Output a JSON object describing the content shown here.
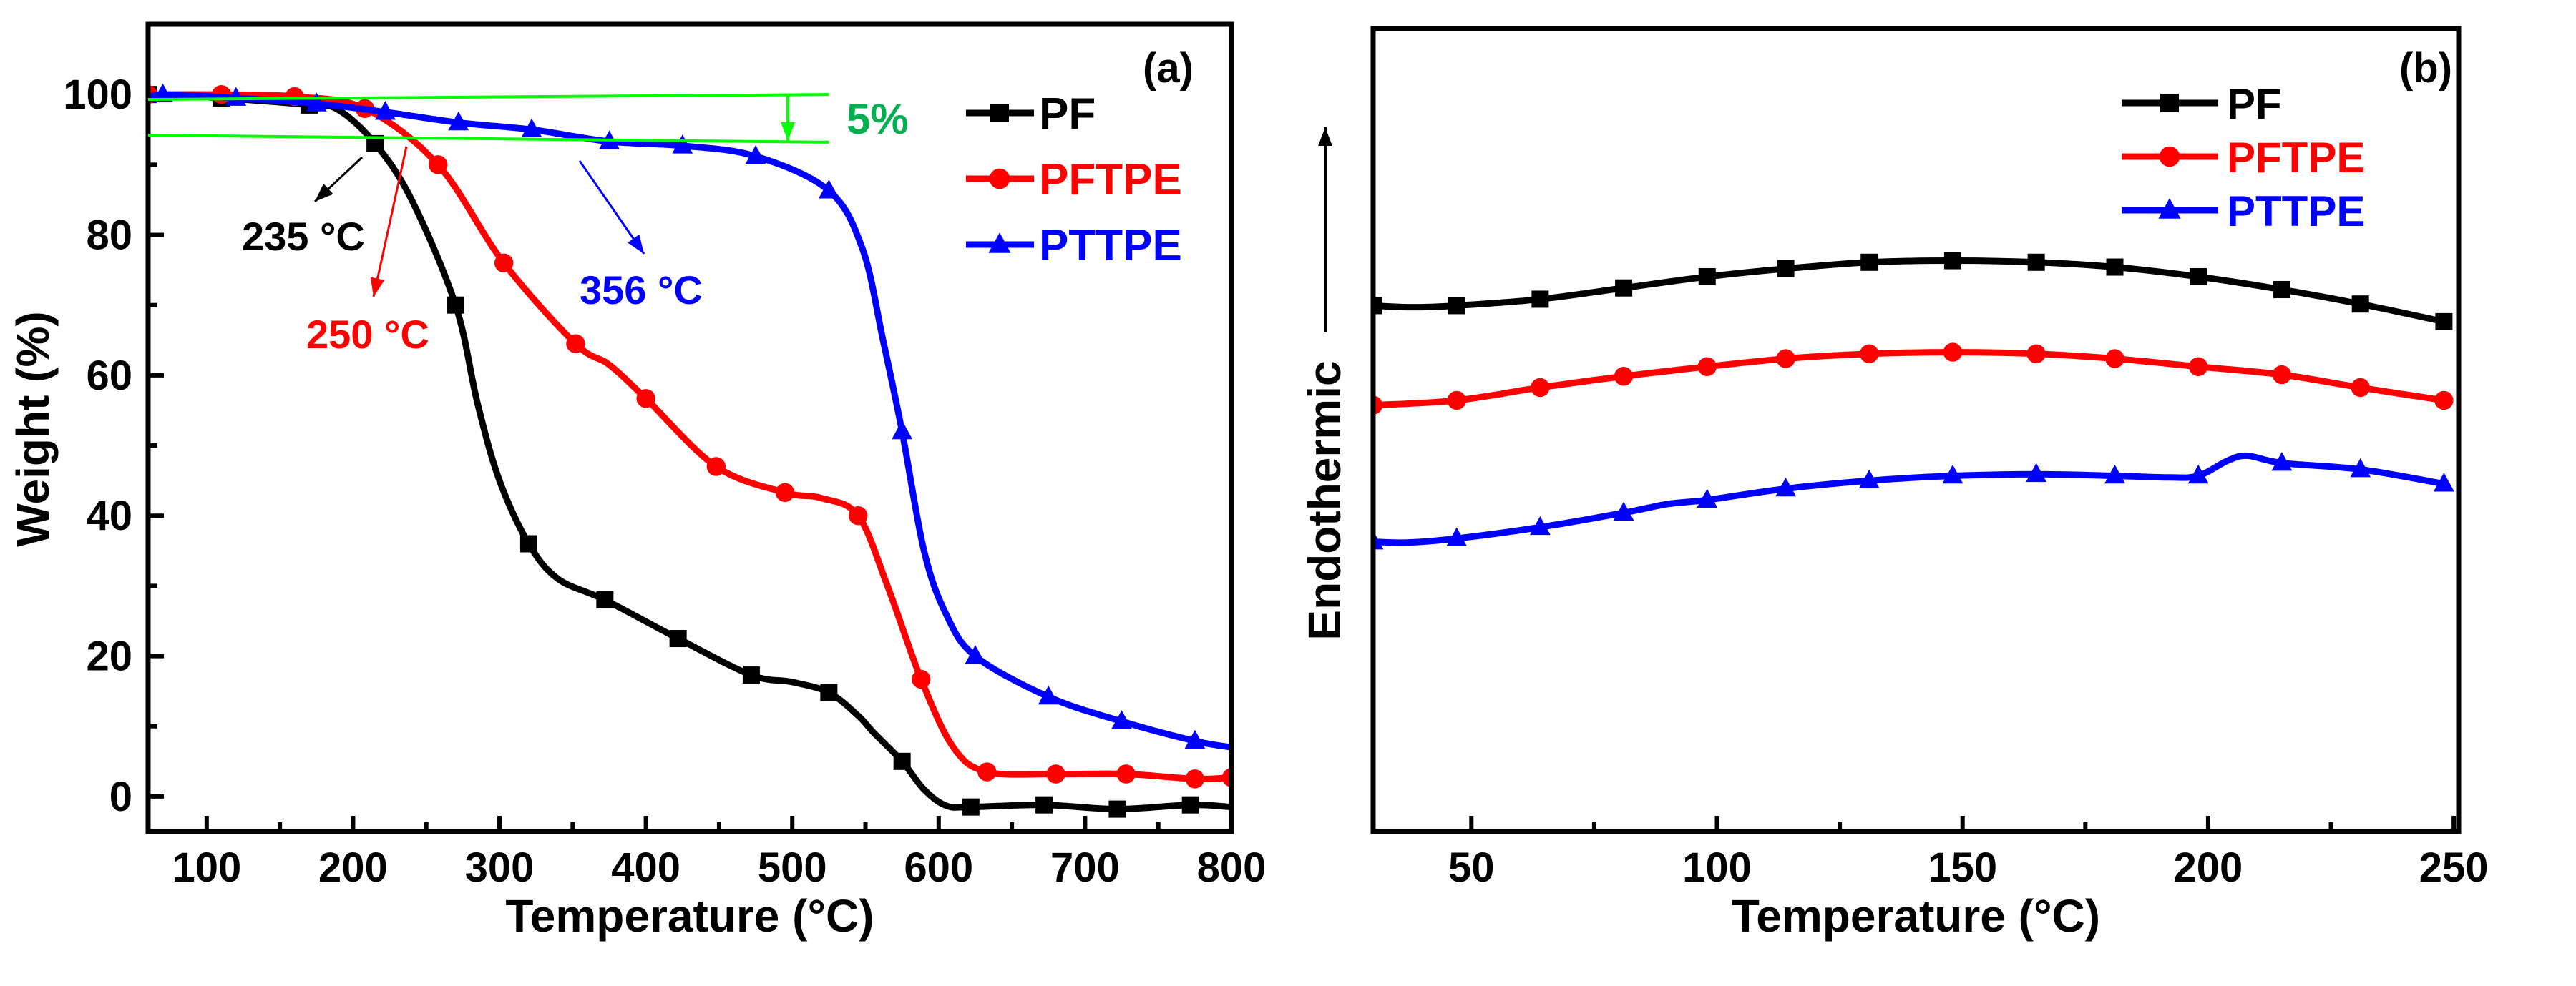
{
  "chart_data": [
    {
      "type": "line",
      "panel_label": "(a)",
      "xlabel": "Temperature (°C)",
      "ylabel": "Weight (%)",
      "xlim": [
        60,
        800
      ],
      "ylim": [
        -5,
        110
      ],
      "xticks": [
        100,
        200,
        300,
        400,
        500,
        600,
        700,
        800
      ],
      "yticks": [
        0,
        20,
        40,
        60,
        80,
        100
      ],
      "legend_position": "top-right",
      "series": [
        {
          "name": "PF",
          "color": "#000000",
          "marker": "square",
          "points": [
            [
              60,
              100
            ],
            [
              110,
              99.5
            ],
            [
              170,
              98.5
            ],
            [
              190,
              97.8
            ],
            [
              215,
              93
            ],
            [
              240,
              85
            ],
            [
              270,
              70
            ],
            [
              285,
              56
            ],
            [
              300,
              45
            ],
            [
              320,
              36
            ],
            [
              340,
              31
            ],
            [
              372,
              28
            ],
            [
              422,
              22.5
            ],
            [
              472,
              17.3
            ],
            [
              500,
              16.3
            ],
            [
              525,
              14.8
            ],
            [
              545,
              11.5
            ],
            [
              556,
              9
            ],
            [
              575,
              5
            ],
            [
              590,
              1
            ],
            [
              605,
              -1.3
            ],
            [
              622,
              -1.5
            ],
            [
              672,
              -1.2
            ],
            [
              722,
              -1.8
            ],
            [
              772,
              -1.2
            ],
            [
              800,
              -1.5
            ]
          ],
          "markers": [
            [
              60,
              100
            ],
            [
              110,
              99.5
            ],
            [
              170,
              98.5
            ],
            [
              215,
              93
            ],
            [
              270,
              70
            ],
            [
              320,
              36
            ],
            [
              372,
              28
            ],
            [
              422,
              22.5
            ],
            [
              472,
              17.3
            ],
            [
              525,
              14.8
            ],
            [
              575,
              5
            ],
            [
              622,
              -1.5
            ],
            [
              672,
              -1.2
            ],
            [
              722,
              -1.8
            ],
            [
              772,
              -1.2
            ]
          ]
        },
        {
          "name": "PFTPE",
          "color": "#ff0000",
          "marker": "circle",
          "points": [
            [
              60,
              100
            ],
            [
              110,
              100
            ],
            [
              160,
              99.7
            ],
            [
              208,
              98
            ],
            [
              258,
              90
            ],
            [
              303,
              76
            ],
            [
              352,
              64.5
            ],
            [
              375,
              61.5
            ],
            [
              400,
              56.7
            ],
            [
              448,
              47
            ],
            [
              495,
              43.3
            ],
            [
              520,
              42.5
            ],
            [
              545,
              40
            ],
            [
              565,
              30
            ],
            [
              588,
              16.7
            ],
            [
              610,
              7
            ],
            [
              633,
              3.5
            ],
            [
              680,
              3.2
            ],
            [
              728,
              3.2
            ],
            [
              775,
              2.5
            ],
            [
              800,
              2.7
            ]
          ],
          "markers": [
            [
              60,
              100
            ],
            [
              110,
              100
            ],
            [
              160,
              99.7
            ],
            [
              208,
              98
            ],
            [
              258,
              90
            ],
            [
              303,
              76
            ],
            [
              352,
              64.5
            ],
            [
              400,
              56.7
            ],
            [
              448,
              47
            ],
            [
              495,
              43.3
            ],
            [
              545,
              40
            ],
            [
              588,
              16.7
            ],
            [
              633,
              3.5
            ],
            [
              680,
              3.2
            ],
            [
              728,
              3.2
            ],
            [
              775,
              2.5
            ],
            [
              800,
              2.7
            ]
          ]
        },
        {
          "name": "PTTPE",
          "color": "#0000ff",
          "marker": "triangle",
          "points": [
            [
              60,
              99.3
            ],
            [
              70,
              100
            ],
            [
              120,
              99.5
            ],
            [
              175,
              98.7
            ],
            [
              222,
              97.5
            ],
            [
              272,
              96
            ],
            [
              322,
              95
            ],
            [
              375,
              93.3
            ],
            [
              425,
              92.7
            ],
            [
              475,
              91.2
            ],
            [
              525,
              86.3
            ],
            [
              548,
              78
            ],
            [
              562,
              65
            ],
            [
              575,
              52
            ],
            [
              590,
              35
            ],
            [
              605,
              26
            ],
            [
              625,
              20
            ],
            [
              675,
              14.2
            ],
            [
              725,
              10.7
            ],
            [
              775,
              7.9
            ],
            [
              800,
              7
            ]
          ],
          "markers": [
            [
              70,
              100
            ],
            [
              120,
              99.5
            ],
            [
              175,
              98.7
            ],
            [
              222,
              97.5
            ],
            [
              272,
              96
            ],
            [
              322,
              95
            ],
            [
              375,
              93.3
            ],
            [
              425,
              92.7
            ],
            [
              475,
              91.2
            ],
            [
              525,
              86.3
            ],
            [
              575,
              52
            ],
            [
              625,
              20
            ],
            [
              675,
              14.2
            ],
            [
              725,
              10.7
            ],
            [
              775,
              7.9
            ]
          ]
        }
      ],
      "annotations": [
        {
          "text": "5%",
          "color": "#00b050"
        },
        {
          "text": "235 °C",
          "color": "#000000",
          "temperature": 235
        },
        {
          "text": "250 °C",
          "color": "#ff0000",
          "temperature": 250
        },
        {
          "text": "356 °C",
          "color": "#0000ff",
          "temperature": 356
        }
      ],
      "reference_lines": {
        "color": "#00ff00",
        "upper": 100,
        "lower": 94,
        "xmax": 525
      }
    },
    {
      "type": "line",
      "panel_label": "(b)",
      "xlabel": "Temperature (°C)",
      "ylabel": "Endothermic",
      "xlim": [
        30,
        251
      ],
      "ylim": [
        0,
        100
      ],
      "y_units": "arbitrary",
      "xticks": [
        50,
        100,
        150,
        200,
        250
      ],
      "legend_position": "top-right",
      "series": [
        {
          "name": "PF",
          "color": "#000000",
          "marker": "square",
          "points": [
            [
              30,
              65.5
            ],
            [
              38,
              65.3
            ],
            [
              47,
              65.5
            ],
            [
              64,
              66.3
            ],
            [
              81,
              67.7
            ],
            [
              98,
              69.1
            ],
            [
              114,
              70.1
            ],
            [
              131,
              70.9
            ],
            [
              148,
              71.1
            ],
            [
              165,
              70.9
            ],
            [
              181,
              70.3
            ],
            [
              198,
              69.1
            ],
            [
              215,
              67.5
            ],
            [
              231,
              65.7
            ],
            [
              248,
              63.5
            ]
          ],
          "markers": [
            [
              30,
              65.5
            ],
            [
              47,
              65.5
            ],
            [
              64,
              66.3
            ],
            [
              81,
              67.7
            ],
            [
              98,
              69.1
            ],
            [
              114,
              70.1
            ],
            [
              131,
              70.9
            ],
            [
              148,
              71.1
            ],
            [
              165,
              70.9
            ],
            [
              181,
              70.3
            ],
            [
              198,
              69.1
            ],
            [
              215,
              67.5
            ],
            [
              231,
              65.7
            ],
            [
              248,
              63.5
            ]
          ]
        },
        {
          "name": "PFTPE",
          "color": "#ff0000",
          "marker": "circle",
          "points": [
            [
              30,
              53.1
            ],
            [
              47,
              53.7
            ],
            [
              64,
              55.3
            ],
            [
              81,
              56.7
            ],
            [
              98,
              57.9
            ],
            [
              114,
              58.9
            ],
            [
              131,
              59.5
            ],
            [
              148,
              59.7
            ],
            [
              165,
              59.5
            ],
            [
              181,
              58.9
            ],
            [
              198,
              57.9
            ],
            [
              215,
              56.9
            ],
            [
              231,
              55.3
            ],
            [
              248,
              53.7
            ]
          ],
          "markers": [
            [
              30,
              53.1
            ],
            [
              47,
              53.7
            ],
            [
              64,
              55.3
            ],
            [
              81,
              56.7
            ],
            [
              98,
              57.9
            ],
            [
              114,
              58.9
            ],
            [
              131,
              59.5
            ],
            [
              148,
              59.7
            ],
            [
              165,
              59.5
            ],
            [
              181,
              58.9
            ],
            [
              198,
              57.9
            ],
            [
              215,
              56.9
            ],
            [
              231,
              55.3
            ],
            [
              248,
              53.7
            ]
          ]
        },
        {
          "name": "PTTPE",
          "color": "#0000ff",
          "marker": "triangle",
          "points": [
            [
              30,
              36.1
            ],
            [
              37,
              36
            ],
            [
              47,
              36.5
            ],
            [
              64,
              37.9
            ],
            [
              81,
              39.7
            ],
            [
              90,
              40.8
            ],
            [
              98,
              41.3
            ],
            [
              114,
              42.7
            ],
            [
              131,
              43.7
            ],
            [
              148,
              44.3
            ],
            [
              165,
              44.5
            ],
            [
              181,
              44.3
            ],
            [
              192,
              44.1
            ],
            [
              198,
              44.3
            ],
            [
              204,
              46.2
            ],
            [
              208,
              46.8
            ],
            [
              215,
              45.9
            ],
            [
              231,
              45.1
            ],
            [
              248,
              43.3
            ]
          ],
          "markers": [
            [
              30,
              36.1
            ],
            [
              47,
              36.5
            ],
            [
              64,
              37.9
            ],
            [
              81,
              39.7
            ],
            [
              98,
              41.3
            ],
            [
              114,
              42.7
            ],
            [
              131,
              43.7
            ],
            [
              148,
              44.3
            ],
            [
              165,
              44.5
            ],
            [
              181,
              44.3
            ],
            [
              198,
              44.3
            ],
            [
              215,
              45.9
            ],
            [
              231,
              45.1
            ],
            [
              248,
              43.3
            ]
          ]
        }
      ]
    }
  ]
}
